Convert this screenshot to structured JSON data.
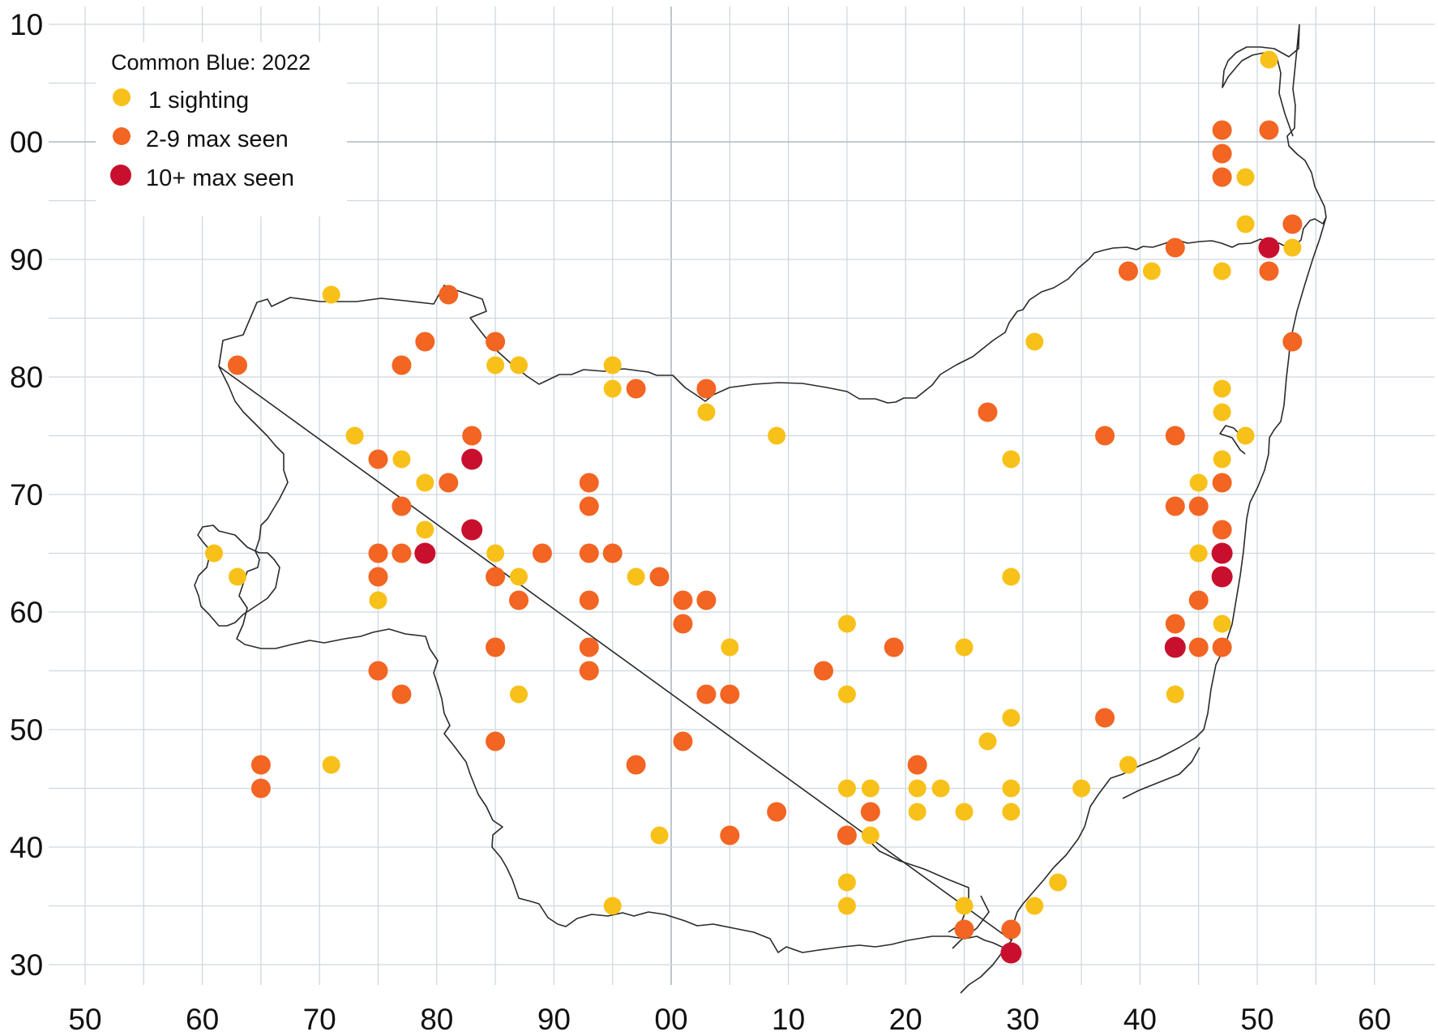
{
  "legend": {
    "title": "Common Blue:  2022",
    "items": [
      {
        "label": "1 sighting",
        "color": "#f7c11a"
      },
      {
        "label": "2-9 max seen",
        "color": "#f26522"
      },
      {
        "label": "10+ max seen",
        "color": "#c8102e"
      }
    ]
  },
  "axes": {
    "x_tick_labels": [
      "50",
      "60",
      "70",
      "80",
      "90",
      "00",
      "10",
      "20",
      "30",
      "40",
      "50",
      "60"
    ],
    "y_tick_labels": [
      "10",
      "00",
      "90",
      "80",
      "70",
      "60",
      "50",
      "40",
      "30"
    ]
  },
  "chart_data": {
    "type": "scatter",
    "title": "Common Blue:  2022",
    "xlabel": "",
    "ylabel": "",
    "x_tick_labels": [
      "50",
      "60",
      "70",
      "80",
      "90",
      "00",
      "10",
      "20",
      "30",
      "40",
      "50",
      "60"
    ],
    "y_tick_labels": [
      "10",
      "00",
      "90",
      "80",
      "70",
      "60",
      "50",
      "40",
      "30"
    ],
    "xlim": [
      50,
      160
    ],
    "ylim": [
      28,
      110
    ],
    "grid": true,
    "legend_position": "top-left",
    "note_units": "Continuous grid values; x 100 = printed 00, 110 = 10, etc.; y 100 = printed 00, 110 = 10",
    "series": [
      {
        "name": "1 sighting",
        "color": "#f7c11a",
        "points": [
          [
            151,
            107
          ],
          [
            149,
            97
          ],
          [
            149,
            93
          ],
          [
            153,
            91
          ],
          [
            147,
            89
          ],
          [
            141,
            89
          ],
          [
            131,
            83
          ],
          [
            147,
            79
          ],
          [
            147,
            77
          ],
          [
            149,
            75
          ],
          [
            147,
            73
          ],
          [
            145,
            71
          ],
          [
            145,
            65
          ],
          [
            147,
            59
          ],
          [
            143,
            53
          ],
          [
            139,
            47
          ],
          [
            135,
            45
          ],
          [
            133,
            37
          ],
          [
            131,
            35
          ],
          [
            129,
            73
          ],
          [
            129,
            63
          ],
          [
            129,
            51
          ],
          [
            129,
            45
          ],
          [
            129,
            43
          ],
          [
            127,
            49
          ],
          [
            125,
            57
          ],
          [
            125,
            43
          ],
          [
            125,
            35
          ],
          [
            123,
            45
          ],
          [
            121,
            45
          ],
          [
            121,
            43
          ],
          [
            117,
            45
          ],
          [
            117,
            41
          ],
          [
            115,
            59
          ],
          [
            115,
            53
          ],
          [
            115,
            45
          ],
          [
            115,
            37
          ],
          [
            115,
            35
          ],
          [
            109,
            75
          ],
          [
            105,
            57
          ],
          [
            103,
            77
          ],
          [
            99,
            41
          ],
          [
            97,
            63
          ],
          [
            95,
            81
          ],
          [
            95,
            79
          ],
          [
            95,
            35
          ],
          [
            87,
            81
          ],
          [
            87,
            63
          ],
          [
            87,
            53
          ],
          [
            85,
            81
          ],
          [
            85,
            65
          ],
          [
            79,
            71
          ],
          [
            79,
            67
          ],
          [
            77,
            73
          ],
          [
            75,
            61
          ],
          [
            73,
            75
          ],
          [
            71,
            87
          ],
          [
            71,
            47
          ],
          [
            63,
            63
          ],
          [
            61,
            65
          ]
        ]
      },
      {
        "name": "2-9 max seen",
        "color": "#f26522",
        "points": [
          [
            147,
            101
          ],
          [
            151,
            101
          ],
          [
            147,
            99
          ],
          [
            147,
            97
          ],
          [
            153,
            93
          ],
          [
            143,
            91
          ],
          [
            151,
            89
          ],
          [
            139,
            89
          ],
          [
            153,
            83
          ],
          [
            143,
            75
          ],
          [
            137,
            75
          ],
          [
            127,
            77
          ],
          [
            147,
            71
          ],
          [
            143,
            69
          ],
          [
            145,
            69
          ],
          [
            147,
            67
          ],
          [
            145,
            61
          ],
          [
            143,
            59
          ],
          [
            145,
            57
          ],
          [
            147,
            57
          ],
          [
            137,
            51
          ],
          [
            129,
            33
          ],
          [
            125,
            33
          ],
          [
            121,
            47
          ],
          [
            119,
            57
          ],
          [
            117,
            43
          ],
          [
            115,
            41
          ],
          [
            113,
            55
          ],
          [
            109,
            43
          ],
          [
            105,
            53
          ],
          [
            105,
            41
          ],
          [
            103,
            79
          ],
          [
            103,
            61
          ],
          [
            103,
            53
          ],
          [
            101,
            61
          ],
          [
            101,
            59
          ],
          [
            101,
            49
          ],
          [
            99,
            63
          ],
          [
            97,
            79
          ],
          [
            97,
            47
          ],
          [
            95,
            65
          ],
          [
            93,
            71
          ],
          [
            93,
            69
          ],
          [
            93,
            65
          ],
          [
            93,
            61
          ],
          [
            93,
            57
          ],
          [
            93,
            55
          ],
          [
            89,
            65
          ],
          [
            87,
            61
          ],
          [
            85,
            83
          ],
          [
            85,
            63
          ],
          [
            85,
            57
          ],
          [
            85,
            49
          ],
          [
            83,
            75
          ],
          [
            81,
            87
          ],
          [
            81,
            71
          ],
          [
            79,
            83
          ],
          [
            77,
            81
          ],
          [
            77,
            69
          ],
          [
            77,
            65
          ],
          [
            77,
            53
          ],
          [
            75,
            73
          ],
          [
            75,
            65
          ],
          [
            75,
            63
          ],
          [
            75,
            55
          ],
          [
            65,
            47
          ],
          [
            65,
            45
          ],
          [
            63,
            81
          ]
        ]
      },
      {
        "name": "10+ max seen",
        "color": "#c8102e",
        "points": [
          [
            151,
            91
          ],
          [
            147,
            65
          ],
          [
            147,
            63
          ],
          [
            143,
            57
          ],
          [
            129,
            31
          ],
          [
            83,
            73
          ],
          [
            83,
            67
          ],
          [
            79,
            65
          ]
        ]
      }
    ]
  }
}
